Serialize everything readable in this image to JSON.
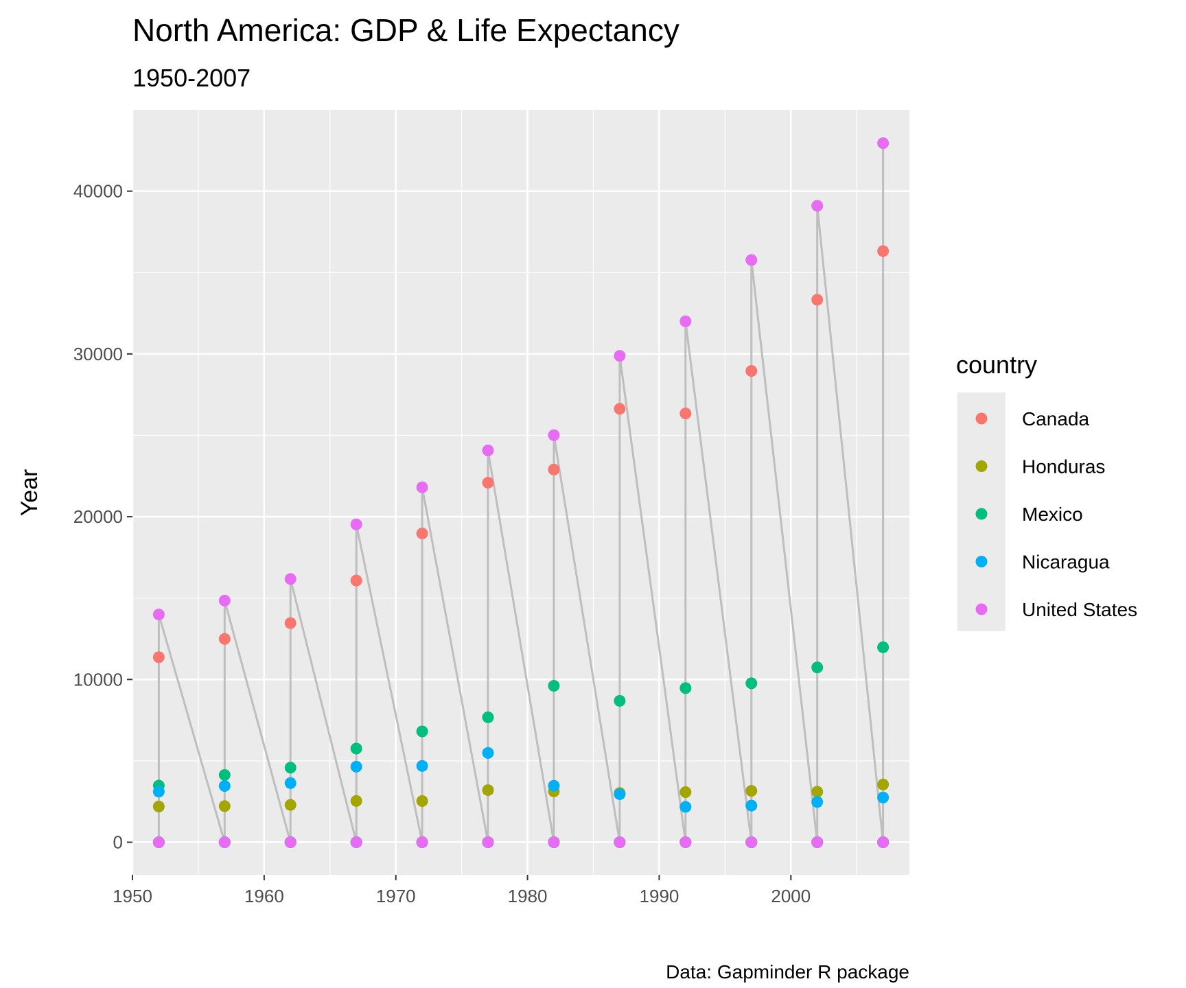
{
  "chart_data": {
    "type": "scatter",
    "title": "North America: GDP & Life Expectancy",
    "subtitle": "1950-2007",
    "xlabel": "",
    "ylabel": "Year",
    "caption": "Data: Gapminder R package",
    "xlim": [
      1950,
      2009
    ],
    "ylim": [
      -2000,
      45000
    ],
    "x_ticks": [
      1950,
      1960,
      1970,
      1980,
      1990,
      2000
    ],
    "y_ticks": [
      0,
      10000,
      20000,
      30000,
      40000
    ],
    "grid": true,
    "legend": {
      "title": "country",
      "position": "right"
    },
    "x": [
      1952,
      1957,
      1962,
      1967,
      1972,
      1977,
      1982,
      1987,
      1992,
      1997,
      2002,
      2007
    ],
    "series": [
      {
        "name": "Canada",
        "color": "#F8766D",
        "values": [
          11367,
          12490,
          13462,
          16077,
          18971,
          22091,
          22899,
          26627,
          26343,
          28955,
          33329,
          36319
        ]
      },
      {
        "name": "Honduras",
        "color": "#A3A500",
        "values": [
          2195,
          2220,
          2292,
          2538,
          2530,
          3203,
          3122,
          3024,
          3081,
          3160,
          3099,
          3548
        ]
      },
      {
        "name": "Mexico",
        "color": "#00BF7D",
        "values": [
          3478,
          4132,
          4582,
          5754,
          6809,
          7675,
          9611,
          8688,
          9472,
          9767,
          10742,
          11978
        ]
      },
      {
        "name": "Nicaragua",
        "color": "#00B0F6",
        "values": [
          3112,
          3457,
          3634,
          4643,
          4689,
          5487,
          3471,
          2955,
          2171,
          2253,
          2474,
          2749
        ]
      },
      {
        "name": "United States",
        "color": "#E76BF3",
        "values": [
          13990,
          14847,
          16173,
          19530,
          21806,
          24073,
          25010,
          29884,
          32004,
          35767,
          39097,
          42952
        ]
      }
    ],
    "life_expectancy_points_y": 0,
    "path_color": "#BEBEBE"
  }
}
